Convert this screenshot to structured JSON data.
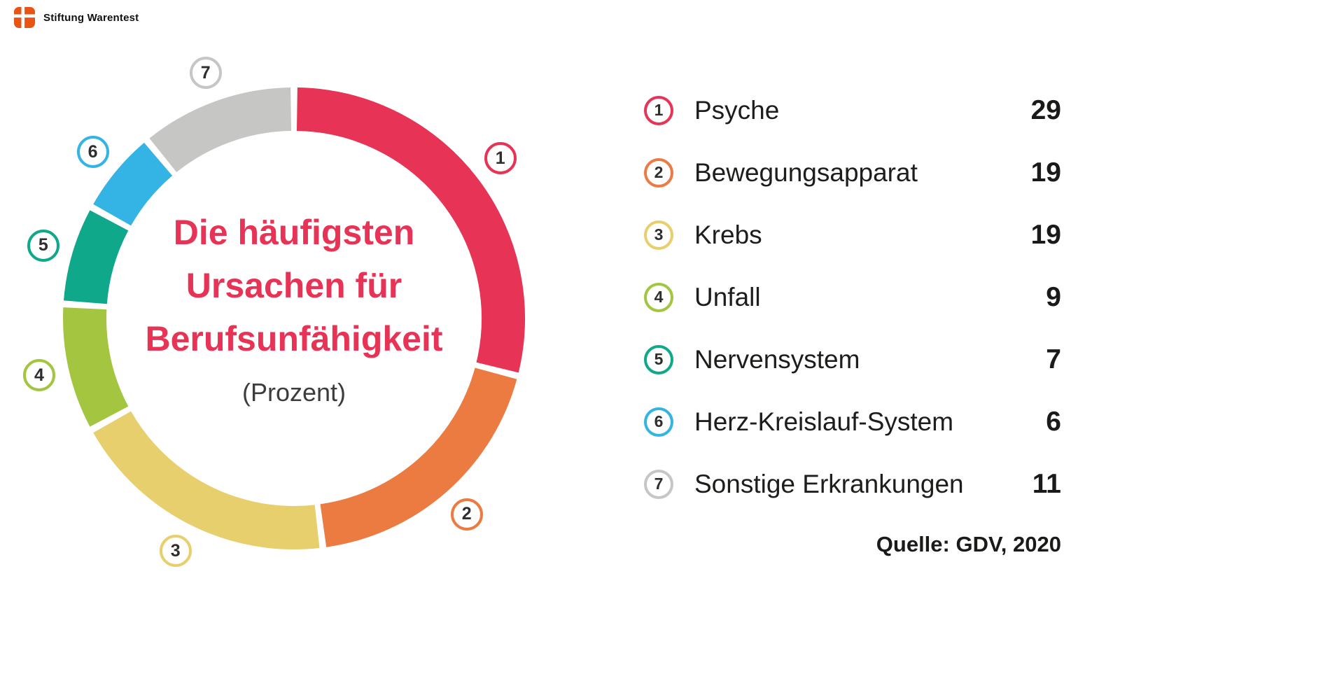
{
  "header": {
    "brand": "Stiftung Warentest"
  },
  "chart_data": {
    "type": "pie",
    "subtype": "donut",
    "title": "Die häufigsten Ursachen für Berufsunfähigkeit",
    "title_lines": [
      "Die häufigsten",
      "Ursachen für",
      "Berufsunfähigkeit"
    ],
    "subtitle": "(Prozent)",
    "categories": [
      "Psyche",
      "Bewegungsapparat",
      "Krebs",
      "Unfall",
      "Nervensystem",
      "Herz-Kreislauf-System",
      "Sonstige Erkrankungen"
    ],
    "values": [
      29,
      19,
      19,
      9,
      7,
      6,
      11
    ],
    "numbers": [
      "1",
      "2",
      "3",
      "4",
      "5",
      "6",
      "7"
    ],
    "colors": [
      "#e73355",
      "#ec7b42",
      "#e7cf6d",
      "#a3c53f",
      "#0fa88b",
      "#33b4e4",
      "#c6c6c5"
    ],
    "start_angle_deg": 0,
    "direction": "clockwise",
    "total": 100,
    "legend_position": "right",
    "source": "Quelle: GDV, 2020",
    "accent_color": "#e73355"
  }
}
